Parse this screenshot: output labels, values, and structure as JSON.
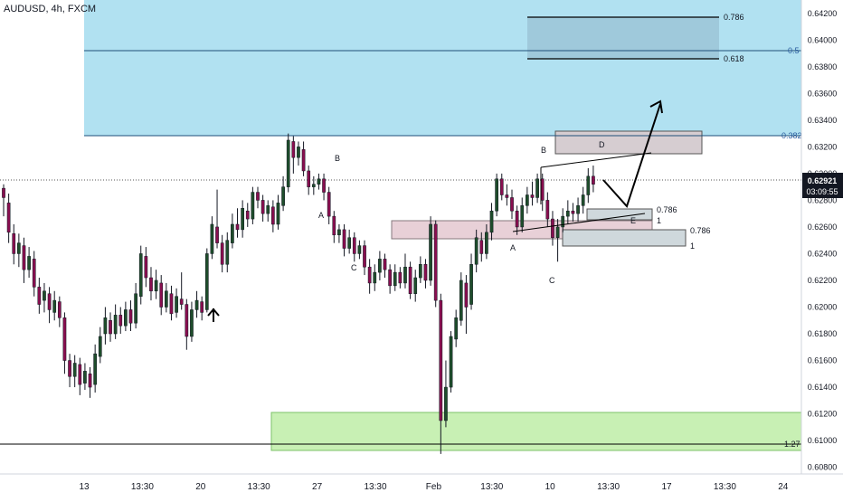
{
  "header": {
    "symbol_label": "AUDUSD, 4h, FXCM"
  },
  "price_scale": {
    "ticks": [
      "0.64200",
      "0.64000",
      "0.63800",
      "0.63600",
      "0.63400",
      "0.63200",
      "0.63000",
      "0.62800",
      "0.62600",
      "0.62400",
      "0.62200",
      "0.62000",
      "0.61800",
      "0.61600",
      "0.61400",
      "0.61200",
      "0.61000",
      "0.60800"
    ],
    "last_price": "0.62921",
    "countdown": "03:09:55"
  },
  "time_axis": {
    "labels": [
      "13",
      "13:30",
      "20",
      "13:30",
      "27",
      "13:30",
      "Feb",
      "13:30",
      "10",
      "13:30",
      "17",
      "13:30",
      "24"
    ]
  },
  "fib_labels": {
    "l0786": "0.786",
    "l05": "0.5",
    "l0618": "0.618",
    "l0382": "0.382",
    "l127": "1.27"
  },
  "box_fibs": {
    "a_0786": "0.786",
    "a_1": "1",
    "b_0786": "0.786",
    "b_1": "1"
  },
  "pattern_labels": {
    "A1": "A",
    "B1": "B",
    "C1": "C",
    "A2": "A",
    "B2": "B",
    "C2": "C",
    "D2": "D",
    "E2": "E"
  },
  "colors": {
    "bull": "#1e4d2b",
    "bear": "#880e4f",
    "fib_blue": "#a3dcef",
    "demand_green": "#c8f0b4",
    "box_pink": "#e6cbd3",
    "box_gray": "#cfd8dc",
    "accent": "#2962ff"
  },
  "chart_data": {
    "type": "candlestick",
    "symbol": "AUDUSD",
    "timeframe": "4h",
    "source": "FXCM",
    "y_range": [
      0.6075,
      0.643
    ],
    "last_price": 0.62921,
    "candles": [
      [
        0.6289,
        0.6282,
        0.6292,
        0.6268
      ],
      [
        0.6278,
        0.6256,
        0.6285,
        0.6248
      ],
      [
        0.6255,
        0.624,
        0.6262,
        0.6232
      ],
      [
        0.624,
        0.6248,
        0.6255,
        0.623
      ],
      [
        0.6246,
        0.6228,
        0.6252,
        0.6218
      ],
      [
        0.6228,
        0.6238,
        0.6245,
        0.6222
      ],
      [
        0.6236,
        0.6215,
        0.6242,
        0.6208
      ],
      [
        0.6215,
        0.6202,
        0.6222,
        0.6195
      ],
      [
        0.6205,
        0.6212,
        0.6218,
        0.6196
      ],
      [
        0.621,
        0.6198,
        0.6215,
        0.6188
      ],
      [
        0.6196,
        0.6205,
        0.6212,
        0.619
      ],
      [
        0.6204,
        0.6192,
        0.6208,
        0.6185
      ],
      [
        0.6192,
        0.616,
        0.6196,
        0.615
      ],
      [
        0.616,
        0.6148,
        0.6165,
        0.614
      ],
      [
        0.6148,
        0.6158,
        0.6164,
        0.614
      ],
      [
        0.6157,
        0.6142,
        0.6162,
        0.6134
      ],
      [
        0.6143,
        0.6152,
        0.6158,
        0.6138
      ],
      [
        0.615,
        0.614,
        0.6155,
        0.6132
      ],
      [
        0.6142,
        0.6165,
        0.6172,
        0.6136
      ],
      [
        0.6163,
        0.6178,
        0.6185,
        0.6158
      ],
      [
        0.618,
        0.6192,
        0.62,
        0.6172
      ],
      [
        0.619,
        0.618,
        0.6196,
        0.6174
      ],
      [
        0.618,
        0.6194,
        0.6202,
        0.6176
      ],
      [
        0.6194,
        0.6186,
        0.62,
        0.618
      ],
      [
        0.6186,
        0.6198,
        0.6204,
        0.6182
      ],
      [
        0.6198,
        0.6188,
        0.6205,
        0.6182
      ],
      [
        0.6188,
        0.621,
        0.6218,
        0.6184
      ],
      [
        0.6208,
        0.624,
        0.6246,
        0.6202
      ],
      [
        0.6238,
        0.6222,
        0.6245,
        0.6215
      ],
      [
        0.6222,
        0.6212,
        0.623,
        0.6205
      ],
      [
        0.6212,
        0.622,
        0.6228,
        0.6206
      ],
      [
        0.6218,
        0.62,
        0.6224,
        0.6194
      ],
      [
        0.62,
        0.6212,
        0.6218,
        0.6196
      ],
      [
        0.621,
        0.6195,
        0.6216,
        0.619
      ],
      [
        0.6196,
        0.6208,
        0.6214,
        0.6192
      ],
      [
        0.6206,
        0.6202,
        0.6226,
        0.6198
      ],
      [
        0.6202,
        0.6178,
        0.6206,
        0.6168
      ],
      [
        0.6178,
        0.6198,
        0.6204,
        0.6174
      ],
      [
        0.6198,
        0.6205,
        0.6212,
        0.6192
      ],
      [
        0.6204,
        0.6196,
        0.6208,
        0.619
      ],
      [
        0.6198,
        0.624,
        0.6244,
        0.6196
      ],
      [
        0.624,
        0.6262,
        0.6268,
        0.6236
      ],
      [
        0.626,
        0.6248,
        0.6288,
        0.6244
      ],
      [
        0.6248,
        0.6232,
        0.6254,
        0.6226
      ],
      [
        0.6232,
        0.625,
        0.6256,
        0.6226
      ],
      [
        0.6248,
        0.6262,
        0.627,
        0.6244
      ],
      [
        0.6262,
        0.6258,
        0.6274,
        0.6252
      ],
      [
        0.6258,
        0.6274,
        0.628,
        0.6252
      ],
      [
        0.6272,
        0.6266,
        0.6278,
        0.626
      ],
      [
        0.6266,
        0.6286,
        0.629,
        0.6262
      ],
      [
        0.6286,
        0.628,
        0.629,
        0.6274
      ],
      [
        0.628,
        0.627,
        0.6284,
        0.6264
      ],
      [
        0.627,
        0.6276,
        0.628,
        0.6264
      ],
      [
        0.6275,
        0.6262,
        0.628,
        0.6256
      ],
      [
        0.6262,
        0.6278,
        0.6284,
        0.6258
      ],
      [
        0.6276,
        0.629,
        0.6298,
        0.6272
      ],
      [
        0.629,
        0.6325,
        0.633,
        0.6286
      ],
      [
        0.6324,
        0.6312,
        0.6328,
        0.63
      ],
      [
        0.6312,
        0.632,
        0.6324,
        0.6306
      ],
      [
        0.6318,
        0.6302,
        0.6324,
        0.6298
      ],
      [
        0.6302,
        0.629,
        0.6306,
        0.6284
      ],
      [
        0.629,
        0.6292,
        0.6298,
        0.6284
      ],
      [
        0.6292,
        0.6296,
        0.63,
        0.6288
      ],
      [
        0.6296,
        0.6286,
        0.63,
        0.628
      ],
      [
        0.6286,
        0.6268,
        0.629,
        0.6262
      ],
      [
        0.6268,
        0.6254,
        0.6272,
        0.6248
      ],
      [
        0.6254,
        0.6258,
        0.6262,
        0.6248
      ],
      [
        0.6258,
        0.6244,
        0.6262,
        0.6238
      ],
      [
        0.6244,
        0.6252,
        0.6258,
        0.624
      ],
      [
        0.6252,
        0.624,
        0.6256,
        0.6234
      ],
      [
        0.624,
        0.6246,
        0.625,
        0.6236
      ],
      [
        0.6246,
        0.623,
        0.625,
        0.6224
      ],
      [
        0.623,
        0.6218,
        0.6236,
        0.621
      ],
      [
        0.6218,
        0.6226,
        0.6232,
        0.6212
      ],
      [
        0.6226,
        0.6236,
        0.6242,
        0.622
      ],
      [
        0.6236,
        0.6228,
        0.624,
        0.6222
      ],
      [
        0.6228,
        0.6216,
        0.6232,
        0.621
      ],
      [
        0.6216,
        0.6226,
        0.6232,
        0.6212
      ],
      [
        0.6226,
        0.6218,
        0.623,
        0.6214
      ],
      [
        0.6218,
        0.623,
        0.624,
        0.6214
      ],
      [
        0.623,
        0.621,
        0.6234,
        0.6206
      ],
      [
        0.621,
        0.6222,
        0.6228,
        0.6204
      ],
      [
        0.6222,
        0.6232,
        0.6238,
        0.6218
      ],
      [
        0.6232,
        0.622,
        0.6236,
        0.6214
      ],
      [
        0.622,
        0.6262,
        0.6268,
        0.6216
      ],
      [
        0.6262,
        0.6205,
        0.6265,
        0.62
      ],
      [
        0.6205,
        0.6115,
        0.621,
        0.609
      ],
      [
        0.6115,
        0.614,
        0.616,
        0.611
      ],
      [
        0.614,
        0.6178,
        0.6182,
        0.6136
      ],
      [
        0.6176,
        0.6192,
        0.6198,
        0.617
      ],
      [
        0.619,
        0.622,
        0.6226,
        0.6186
      ],
      [
        0.6218,
        0.62,
        0.6224,
        0.618
      ],
      [
        0.6202,
        0.6232,
        0.624,
        0.6198
      ],
      [
        0.6232,
        0.6252,
        0.6258,
        0.6226
      ],
      [
        0.625,
        0.624,
        0.6256,
        0.6234
      ],
      [
        0.624,
        0.6256,
        0.6262,
        0.6236
      ],
      [
        0.6256,
        0.6272,
        0.6278,
        0.625
      ],
      [
        0.6272,
        0.6296,
        0.63,
        0.6268
      ],
      [
        0.6296,
        0.6284,
        0.63,
        0.628
      ],
      [
        0.6284,
        0.6282,
        0.6292,
        0.6276
      ],
      [
        0.6282,
        0.6272,
        0.6288,
        0.6266
      ],
      [
        0.6272,
        0.626,
        0.6276,
        0.6254
      ],
      [
        0.626,
        0.6276,
        0.6282,
        0.6256
      ],
      [
        0.6276,
        0.6284,
        0.629,
        0.627
      ],
      [
        0.6284,
        0.6282,
        0.6294,
        0.6276
      ],
      [
        0.6282,
        0.6296,
        0.63,
        0.6278
      ],
      [
        0.6296,
        0.628,
        0.63,
        0.6272
      ],
      [
        0.628,
        0.6266,
        0.6286,
        0.626
      ],
      [
        0.6266,
        0.6252,
        0.6272,
        0.6246
      ],
      [
        0.6252,
        0.626,
        0.6266,
        0.6234
      ],
      [
        0.626,
        0.6268,
        0.6274,
        0.6256
      ],
      [
        0.6268,
        0.6272,
        0.628,
        0.6262
      ],
      [
        0.6272,
        0.627,
        0.6278,
        0.6264
      ],
      [
        0.627,
        0.6276,
        0.6282,
        0.6264
      ],
      [
        0.6276,
        0.6284,
        0.629,
        0.627
      ],
      [
        0.6284,
        0.6298,
        0.6304,
        0.6278
      ],
      [
        0.6298,
        0.6292,
        0.6306,
        0.6286
      ]
    ]
  }
}
